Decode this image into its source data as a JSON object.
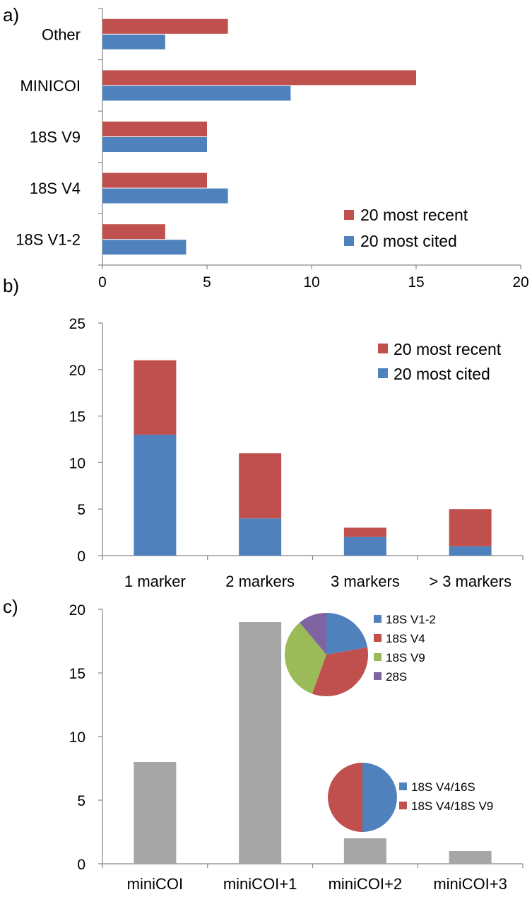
{
  "colors": {
    "recent": "#C0504D",
    "cited": "#4F81BD",
    "gray": "#A6A6A6",
    "green": "#9BBB59",
    "purple": "#8064A2",
    "axis": "#868686"
  },
  "chart_data": [
    {
      "panel": "a)",
      "type": "bar",
      "orientation": "horizontal",
      "categories": [
        "Other",
        "MINICOI",
        "18S V9",
        "18S V4",
        "18S V1-2"
      ],
      "series": [
        {
          "name": "20 most recent",
          "values": [
            6,
            15,
            5,
            5,
            3
          ]
        },
        {
          "name": "20 most cited",
          "values": [
            3,
            9,
            5,
            6,
            4
          ]
        }
      ],
      "xlim": [
        0,
        20
      ],
      "xticks": [
        "0",
        "5",
        "10",
        "15",
        "20"
      ],
      "legend": "bottom-right"
    },
    {
      "panel": "b)",
      "type": "bar",
      "stacked": true,
      "categories": [
        "1 marker",
        "2 markers",
        "3 markers",
        "> 3 markers"
      ],
      "series": [
        {
          "name": "20 most cited",
          "values": [
            13,
            4,
            2,
            1
          ]
        },
        {
          "name": "20 most recent",
          "values": [
            8,
            7,
            1,
            4
          ]
        }
      ],
      "ylim": [
        0,
        25
      ],
      "yticks": [
        "0",
        "5",
        "10",
        "15",
        "20",
        "25"
      ],
      "legend_order": [
        "20 most recent",
        "20 most cited"
      ],
      "legend": "top-right"
    },
    {
      "panel": "c)",
      "type": "bar",
      "categories": [
        "miniCOI",
        "miniCOI+1",
        "miniCOI+2",
        "miniCOI+3"
      ],
      "values": [
        8,
        19,
        2,
        1
      ],
      "ylim": [
        0,
        20
      ],
      "yticks": [
        "0",
        "5",
        "10",
        "15",
        "20"
      ],
      "insets": [
        {
          "type": "pie",
          "labels": [
            "18S V1-2",
            "18S V4",
            "18S V9",
            "28S"
          ],
          "values": [
            4,
            6,
            6,
            2
          ]
        },
        {
          "type": "pie",
          "labels": [
            "18S V4/16S",
            "18S V4/18S V9"
          ],
          "values": [
            1,
            1
          ]
        }
      ]
    }
  ]
}
